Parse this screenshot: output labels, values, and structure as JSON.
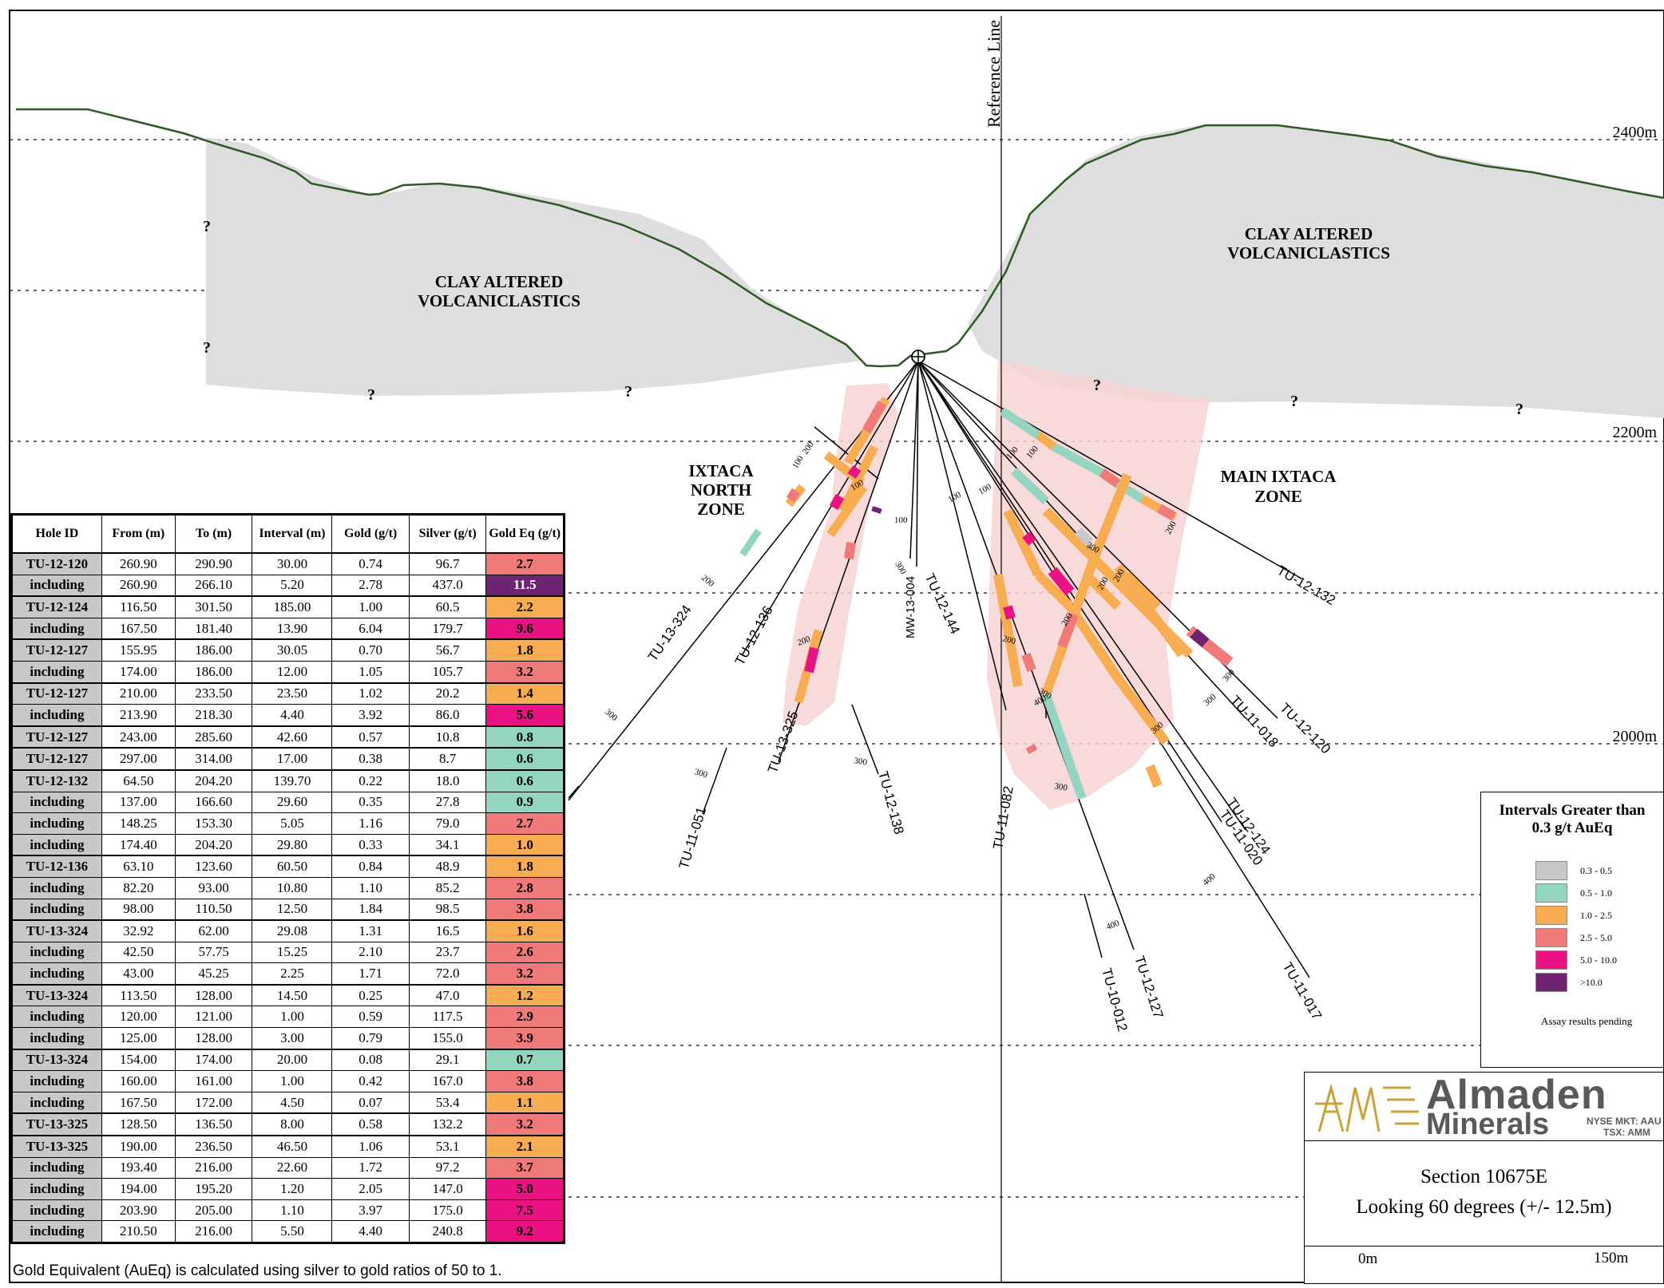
{
  "section": {
    "reference_line": "Reference Line",
    "elevations": [
      "2400m",
      "2200m",
      "2000m"
    ],
    "units": [
      {
        "label_line1": "CLAY ALTERED",
        "label_line2": "VOLCANICLASTICS"
      },
      {
        "label_line1": "CLAY ALTERED",
        "label_line2": "VOLCANICLASTICS"
      }
    ],
    "zones": [
      {
        "line1": "IXTACA",
        "line2": "NORTH",
        "line3": "ZONE"
      },
      {
        "line1": "MAIN IXTACA",
        "line2": "ZONE"
      }
    ],
    "question_mark": "?",
    "drill_holes": [
      "TU-13-324",
      "TU-12-136",
      "TU-13-325",
      "MW-13-004",
      "TU-12-144",
      "TU-12-138",
      "TU-11-051",
      "TU-11-082",
      "TU-10-012",
      "TU-12-127",
      "TU-11-017",
      "TU-12-124",
      "TU-11-020",
      "TU-11-018",
      "TU-12-120",
      "TU-12-132"
    ],
    "depth_ticks": [
      "100",
      "200",
      "300",
      "400"
    ]
  },
  "table": {
    "headers": [
      "Hole ID",
      "From (m)",
      "To (m)",
      "Interval (m)",
      "Gold (g/t)",
      "Silver (g/t)",
      "Gold Eq (g/t)"
    ],
    "rows": [
      [
        "TU-12-120",
        "260.90",
        "290.90",
        "30.00",
        "0.74",
        "96.7",
        "2.7"
      ],
      [
        "including",
        "260.90",
        "266.10",
        "5.20",
        "2.78",
        "437.0",
        "11.5"
      ],
      [
        "TU-12-124",
        "116.50",
        "301.50",
        "185.00",
        "1.00",
        "60.5",
        "2.2"
      ],
      [
        "including",
        "167.50",
        "181.40",
        "13.90",
        "6.04",
        "179.7",
        "9.6"
      ],
      [
        "TU-12-127",
        "155.95",
        "186.00",
        "30.05",
        "0.70",
        "56.7",
        "1.8"
      ],
      [
        "including",
        "174.00",
        "186.00",
        "12.00",
        "1.05",
        "105.7",
        "3.2"
      ],
      [
        "TU-12-127",
        "210.00",
        "233.50",
        "23.50",
        "1.02",
        "20.2",
        "1.4"
      ],
      [
        "including",
        "213.90",
        "218.30",
        "4.40",
        "3.92",
        "86.0",
        "5.6"
      ],
      [
        "TU-12-127",
        "243.00",
        "285.60",
        "42.60",
        "0.57",
        "10.8",
        "0.8"
      ],
      [
        "TU-12-127",
        "297.00",
        "314.00",
        "17.00",
        "0.38",
        "8.7",
        "0.6"
      ],
      [
        "TU-12-132",
        "64.50",
        "204.20",
        "139.70",
        "0.22",
        "18.0",
        "0.6"
      ],
      [
        "including",
        "137.00",
        "166.60",
        "29.60",
        "0.35",
        "27.8",
        "0.9"
      ],
      [
        "including",
        "148.25",
        "153.30",
        "5.05",
        "1.16",
        "79.0",
        "2.7"
      ],
      [
        "including",
        "174.40",
        "204.20",
        "29.80",
        "0.33",
        "34.1",
        "1.0"
      ],
      [
        "TU-12-136",
        "63.10",
        "123.60",
        "60.50",
        "0.84",
        "48.9",
        "1.8"
      ],
      [
        "including",
        "82.20",
        "93.00",
        "10.80",
        "1.10",
        "85.2",
        "2.8"
      ],
      [
        "including",
        "98.00",
        "110.50",
        "12.50",
        "1.84",
        "98.5",
        "3.8"
      ],
      [
        "TU-13-324",
        "32.92",
        "62.00",
        "29.08",
        "1.31",
        "16.5",
        "1.6"
      ],
      [
        "including",
        "42.50",
        "57.75",
        "15.25",
        "2.10",
        "23.7",
        "2.6"
      ],
      [
        "including",
        "43.00",
        "45.25",
        "2.25",
        "1.71",
        "72.0",
        "3.2"
      ],
      [
        "TU-13-324",
        "113.50",
        "128.00",
        "14.50",
        "0.25",
        "47.0",
        "1.2"
      ],
      [
        "including",
        "120.00",
        "121.00",
        "1.00",
        "0.59",
        "117.5",
        "2.9"
      ],
      [
        "including",
        "125.00",
        "128.00",
        "3.00",
        "0.79",
        "155.0",
        "3.9"
      ],
      [
        "TU-13-324",
        "154.00",
        "174.00",
        "20.00",
        "0.08",
        "29.1",
        "0.7"
      ],
      [
        "including",
        "160.00",
        "161.00",
        "1.00",
        "0.42",
        "167.0",
        "3.8"
      ],
      [
        "including",
        "167.50",
        "172.00",
        "4.50",
        "0.07",
        "53.4",
        "1.1"
      ],
      [
        "TU-13-325",
        "128.50",
        "136.50",
        "8.00",
        "0.58",
        "132.2",
        "3.2"
      ],
      [
        "TU-13-325",
        "190.00",
        "236.50",
        "46.50",
        "1.06",
        "53.1",
        "2.1"
      ],
      [
        "including",
        "193.40",
        "216.00",
        "22.60",
        "1.72",
        "97.2",
        "3.7"
      ],
      [
        "including",
        "194.00",
        "195.20",
        "1.20",
        "2.05",
        "147.0",
        "5.0"
      ],
      [
        "including",
        "203.90",
        "205.00",
        "1.10",
        "3.97",
        "175.0",
        "7.5"
      ],
      [
        "including",
        "210.50",
        "216.00",
        "5.50",
        "4.40",
        "240.8",
        "9.2"
      ]
    ],
    "footnote": "Gold Equivalent (AuEq) is calculated using silver to gold ratios of 50 to 1."
  },
  "legend": {
    "title_line1": "Intervals Greater than",
    "title_line2": "0.3 g/t AuEq",
    "items": [
      {
        "label": "0.3 - 0.5",
        "color": "#c8c8c8"
      },
      {
        "label": "0.5 - 1.0",
        "color": "#93d5c0"
      },
      {
        "label": "1.0 - 2.5",
        "color": "#f9ad52"
      },
      {
        "label": "2.5 - 5.0",
        "color": "#f07a7a"
      },
      {
        "label": "5.0 - 10.0",
        "color": "#ea1183"
      },
      {
        "label": ">10.0",
        "color": "#6f2472"
      }
    ],
    "pending_label": "Assay results pending"
  },
  "branding": {
    "name": "Almaden",
    "name2": "Minerals",
    "ticker1": "NYSE MKT: AAU",
    "ticker2": "TSX: AMM"
  },
  "title_block": {
    "title": "Section 10675E",
    "subtitle": "Looking 60 degrees (+/- 12.5m)",
    "scale_start": "0m",
    "scale_end": "150m"
  }
}
